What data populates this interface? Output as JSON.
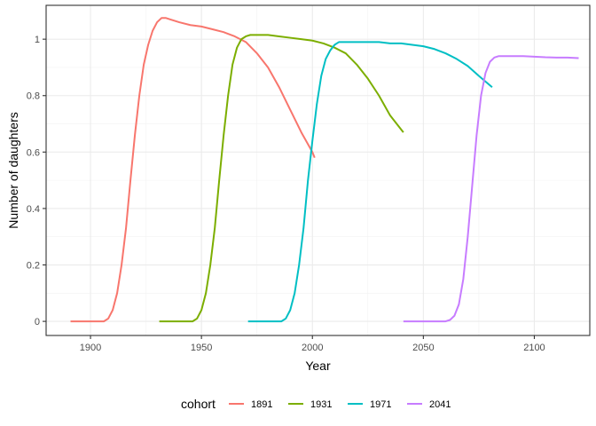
{
  "chart_data": {
    "type": "line",
    "xlabel": "Year",
    "ylabel": "Number of daughters",
    "xlim": [
      1880,
      2125
    ],
    "ylim": [
      -0.05,
      1.12
    ],
    "x_ticks": [
      1900,
      1950,
      2000,
      2050,
      2100
    ],
    "y_ticks": [
      0,
      0.2,
      0.4,
      0.6,
      0.8,
      1
    ],
    "x_tick_labels": [
      "1900",
      "1950",
      "2000",
      "2050",
      "2100"
    ],
    "y_tick_labels": [
      "0",
      "0.2",
      "0.4",
      "0.6",
      "0.8",
      "1"
    ],
    "grid": true,
    "legend": {
      "title": "cohort",
      "position": "bottom"
    },
    "series": [
      {
        "name": "1891",
        "color": "#F8766D",
        "x": [
          1891,
          1900,
          1906,
          1908,
          1910,
          1912,
          1914,
          1916,
          1918,
          1920,
          1922,
          1924,
          1926,
          1928,
          1930,
          1932,
          1934,
          1936,
          1940,
          1945,
          1950,
          1955,
          1960,
          1965,
          1970,
          1975,
          1980,
          1985,
          1990,
          1995,
          2000,
          2001
        ],
        "y": [
          0,
          0,
          0,
          0.01,
          0.04,
          0.1,
          0.2,
          0.33,
          0.5,
          0.66,
          0.8,
          0.91,
          0.98,
          1.03,
          1.06,
          1.075,
          1.075,
          1.07,
          1.06,
          1.05,
          1.045,
          1.035,
          1.025,
          1.01,
          0.99,
          0.95,
          0.9,
          0.83,
          0.75,
          0.67,
          0.6,
          0.58
        ]
      },
      {
        "name": "1931",
        "color": "#7CAE00",
        "x": [
          1931,
          1940,
          1946,
          1948,
          1950,
          1952,
          1954,
          1956,
          1958,
          1960,
          1962,
          1964,
          1966,
          1968,
          1970,
          1972,
          1975,
          1980,
          1985,
          1990,
          1995,
          2000,
          2005,
          2010,
          2015,
          2020,
          2025,
          2030,
          2035,
          2039,
          2041
        ],
        "y": [
          0,
          0,
          0,
          0.01,
          0.04,
          0.1,
          0.2,
          0.33,
          0.5,
          0.66,
          0.8,
          0.91,
          0.97,
          1.0,
          1.01,
          1.015,
          1.015,
          1.015,
          1.01,
          1.005,
          1.0,
          0.995,
          0.985,
          0.97,
          0.95,
          0.91,
          0.86,
          0.8,
          0.73,
          0.69,
          0.67
        ]
      },
      {
        "name": "1971",
        "color": "#00BFC4",
        "x": [
          1971,
          1980,
          1986,
          1988,
          1990,
          1992,
          1994,
          1996,
          1998,
          2000,
          2002,
          2004,
          2006,
          2008,
          2010,
          2012,
          2015,
          2020,
          2025,
          2030,
          2035,
          2040,
          2045,
          2050,
          2055,
          2060,
          2065,
          2070,
          2075,
          2078,
          2081
        ],
        "y": [
          0,
          0,
          0,
          0.01,
          0.04,
          0.1,
          0.2,
          0.33,
          0.5,
          0.64,
          0.77,
          0.87,
          0.93,
          0.96,
          0.98,
          0.99,
          0.99,
          0.99,
          0.99,
          0.99,
          0.985,
          0.985,
          0.98,
          0.975,
          0.965,
          0.95,
          0.93,
          0.905,
          0.87,
          0.85,
          0.83
        ]
      },
      {
        "name": "2041",
        "color": "#C77CFF",
        "x": [
          2041,
          2055,
          2060,
          2062,
          2064,
          2066,
          2068,
          2070,
          2072,
          2074,
          2076,
          2078,
          2080,
          2082,
          2084,
          2087,
          2090,
          2095,
          2100,
          2105,
          2110,
          2115,
          2120
        ],
        "y": [
          0,
          0,
          0,
          0.005,
          0.02,
          0.06,
          0.15,
          0.3,
          0.48,
          0.66,
          0.8,
          0.88,
          0.92,
          0.935,
          0.94,
          0.94,
          0.94,
          0.94,
          0.938,
          0.936,
          0.935,
          0.935,
          0.933
        ]
      }
    ]
  }
}
